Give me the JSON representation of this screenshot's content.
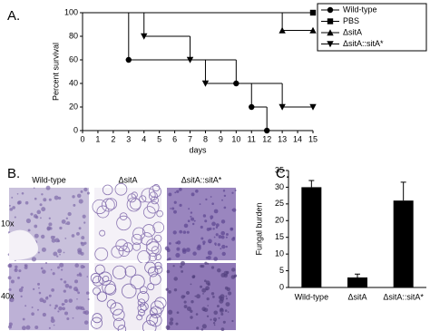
{
  "figure": {
    "panels": [
      "A.",
      "B.",
      "C."
    ],
    "histology": {
      "columns": [
        "Wild-type",
        "ΔsitA",
        "ΔsitA::sitA*"
      ],
      "rows": [
        "10x",
        "40x"
      ]
    }
  },
  "chart_data": [
    {
      "type": "step",
      "xlabel": "days",
      "ylabel": "Percent survival",
      "xlim": [
        0,
        15
      ],
      "xticks": [
        0,
        1,
        2,
        3,
        4,
        5,
        6,
        7,
        8,
        9,
        10,
        11,
        12,
        13,
        14,
        15
      ],
      "ylim": [
        0,
        100
      ],
      "yticks": [
        0,
        20,
        40,
        60,
        80,
        100
      ],
      "legend": "upper right",
      "series": [
        {
          "name": "Wild-type",
          "marker": "circle",
          "color": "#000",
          "x": [
            0,
            3,
            10,
            11,
            12
          ],
          "values": [
            100,
            60,
            40,
            20,
            0
          ]
        },
        {
          "name": "PBS",
          "marker": "square",
          "color": "#000",
          "x": [
            0,
            15
          ],
          "values": [
            100,
            100
          ]
        },
        {
          "name": "ΔsitA",
          "marker": "triangle-up",
          "color": "#000",
          "x": [
            0,
            13,
            15
          ],
          "values": [
            100,
            85,
            85
          ]
        },
        {
          "name": "ΔsitA::sitA*",
          "marker": "triangle-down",
          "color": "#000",
          "x": [
            0,
            4,
            7,
            8,
            13,
            15
          ],
          "values": [
            100,
            80,
            60,
            40,
            20,
            20
          ]
        }
      ]
    },
    {
      "type": "bar",
      "ylabel": "Fungal burden",
      "categories": [
        "Wild-type",
        "ΔsitA",
        "ΔsitA::sitA*"
      ],
      "values": [
        30,
        3,
        26
      ],
      "errors": [
        2,
        1,
        5.5
      ],
      "color": "#000",
      "ylim": [
        0,
        35
      ],
      "yticks": [
        0,
        5,
        10,
        15,
        20,
        25,
        30,
        35
      ]
    }
  ]
}
